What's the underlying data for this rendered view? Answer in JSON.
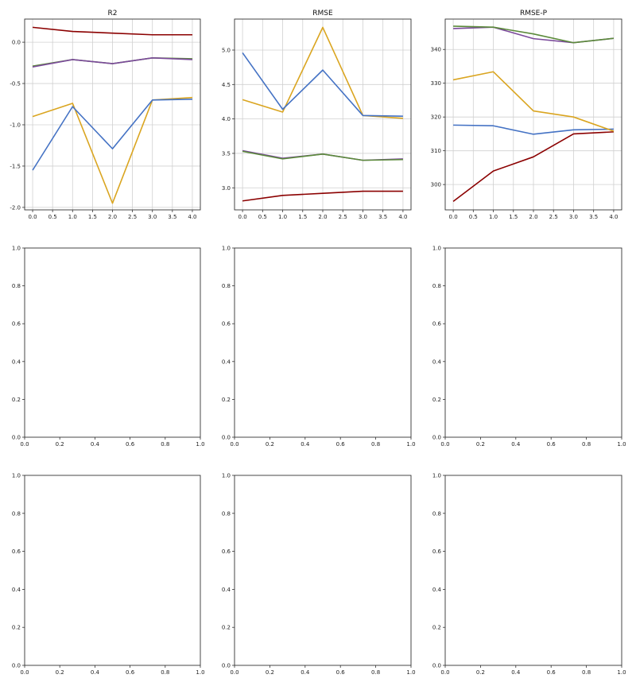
{
  "chart_data": [
    {
      "type": "line",
      "title": "R2",
      "xlabel": "",
      "ylabel": "",
      "grid": true,
      "x": [
        0,
        1,
        2,
        3,
        4
      ],
      "xticks": [
        0.0,
        0.5,
        1.0,
        1.5,
        2.0,
        2.5,
        3.0,
        3.5,
        4.0
      ],
      "xtick_labels": [
        "0.0",
        "0.5",
        "1.0",
        "1.5",
        "2.0",
        "2.5",
        "3.0",
        "3.5",
        "4.0"
      ],
      "xlim": [
        -0.2,
        4.2
      ],
      "ylim": [
        -2.03,
        0.28
      ],
      "yticks": [
        -2.0,
        -1.5,
        -1.0,
        -0.5,
        0.0
      ],
      "ytick_labels": [
        "-2.0",
        "-1.5",
        "-1.0",
        "-0.5",
        "0.0"
      ],
      "series": [
        {
          "color": "#8b0000",
          "values": [
            0.18,
            0.13,
            0.11,
            0.09,
            0.09
          ]
        },
        {
          "color": "#5b8a3a",
          "values": [
            -0.29,
            -0.21,
            -0.26,
            -0.19,
            -0.2
          ]
        },
        {
          "color": "#7b4a9b",
          "values": [
            -0.3,
            -0.21,
            -0.26,
            -0.19,
            -0.21
          ]
        },
        {
          "color": "#daa520",
          "values": [
            -0.9,
            -0.74,
            -1.95,
            -0.7,
            -0.67
          ]
        },
        {
          "color": "#4472c4",
          "values": [
            -1.55,
            -0.78,
            -1.29,
            -0.7,
            -0.69
          ]
        }
      ]
    },
    {
      "type": "line",
      "title": "RMSE",
      "xlabel": "",
      "ylabel": "",
      "grid": true,
      "x": [
        0,
        1,
        2,
        3,
        4
      ],
      "xticks": [
        0.0,
        0.5,
        1.0,
        1.5,
        2.0,
        2.5,
        3.0,
        3.5,
        4.0
      ],
      "xtick_labels": [
        "0.0",
        "0.5",
        "1.0",
        "1.5",
        "2.0",
        "2.5",
        "3.0",
        "3.5",
        "4.0"
      ],
      "xlim": [
        -0.2,
        4.2
      ],
      "ylim": [
        2.68,
        5.45
      ],
      "yticks": [
        3.0,
        3.5,
        4.0,
        4.5,
        5.0
      ],
      "ytick_labels": [
        "3.0",
        "3.5",
        "4.0",
        "4.5",
        "5.0"
      ],
      "series": [
        {
          "color": "#8b0000",
          "values": [
            2.81,
            2.89,
            2.92,
            2.95,
            2.95
          ]
        },
        {
          "color": "#7b4a9b",
          "values": [
            3.54,
            3.43,
            3.49,
            3.4,
            3.42
          ]
        },
        {
          "color": "#5b8a3a",
          "values": [
            3.53,
            3.42,
            3.49,
            3.4,
            3.41
          ]
        },
        {
          "color": "#daa520",
          "values": [
            4.28,
            4.1,
            5.33,
            4.05,
            4.01
          ]
        },
        {
          "color": "#4472c4",
          "values": [
            4.96,
            4.14,
            4.71,
            4.05,
            4.04
          ]
        }
      ]
    },
    {
      "type": "line",
      "title": "RMSE-P",
      "xlabel": "",
      "ylabel": "",
      "grid": true,
      "x": [
        0,
        1,
        2,
        3,
        4
      ],
      "xticks": [
        0.0,
        0.5,
        1.0,
        1.5,
        2.0,
        2.5,
        3.0,
        3.5,
        4.0
      ],
      "xtick_labels": [
        "0.0",
        "0.5",
        "1.0",
        "1.5",
        "2.0",
        "2.5",
        "3.0",
        "3.5",
        "4.0"
      ],
      "xlim": [
        -0.2,
        4.2
      ],
      "ylim": [
        292.5,
        349.0
      ],
      "yticks": [
        300,
        310,
        320,
        330,
        340
      ],
      "ytick_labels": [
        "300",
        "310",
        "320",
        "330",
        "340"
      ],
      "series": [
        {
          "color": "#8b0000",
          "values": [
            295.0,
            304.0,
            308.2,
            315.0,
            315.6
          ]
        },
        {
          "color": "#4472c4",
          "values": [
            317.6,
            317.4,
            314.9,
            316.2,
            316.4
          ]
        },
        {
          "color": "#daa520",
          "values": [
            331.0,
            333.4,
            321.8,
            320.0,
            315.8
          ]
        },
        {
          "color": "#7b4a9b",
          "values": [
            346.2,
            346.6,
            343.2,
            342.0,
            343.3
          ]
        },
        {
          "color": "#5b8a3a",
          "values": [
            346.9,
            346.6,
            344.6,
            342.0,
            343.3
          ]
        }
      ]
    },
    {
      "type": "line",
      "title": "",
      "xlabel": "",
      "ylabel": "",
      "grid": false,
      "xlim": [
        0,
        1
      ],
      "ylim": [
        0,
        1
      ],
      "xticks": [
        0.0,
        0.2,
        0.4,
        0.6,
        0.8,
        1.0
      ],
      "xtick_labels": [
        "0.0",
        "0.2",
        "0.4",
        "0.6",
        "0.8",
        "1.0"
      ],
      "yticks": [
        0.0,
        0.2,
        0.4,
        0.6,
        0.8,
        1.0
      ],
      "ytick_labels": [
        "0.0",
        "0.2",
        "0.4",
        "0.6",
        "0.8",
        "1.0"
      ],
      "series": []
    },
    {
      "type": "line",
      "title": "",
      "xlabel": "",
      "ylabel": "",
      "grid": false,
      "xlim": [
        0,
        1
      ],
      "ylim": [
        0,
        1
      ],
      "xticks": [
        0.0,
        0.2,
        0.4,
        0.6,
        0.8,
        1.0
      ],
      "xtick_labels": [
        "0.0",
        "0.2",
        "0.4",
        "0.6",
        "0.8",
        "1.0"
      ],
      "yticks": [
        0.0,
        0.2,
        0.4,
        0.6,
        0.8,
        1.0
      ],
      "ytick_labels": [
        "0.0",
        "0.2",
        "0.4",
        "0.6",
        "0.8",
        "1.0"
      ],
      "series": []
    },
    {
      "type": "line",
      "title": "",
      "xlabel": "",
      "ylabel": "",
      "grid": false,
      "xlim": [
        0,
        1
      ],
      "ylim": [
        0,
        1
      ],
      "xticks": [
        0.0,
        0.2,
        0.4,
        0.6,
        0.8,
        1.0
      ],
      "xtick_labels": [
        "0.0",
        "0.2",
        "0.4",
        "0.6",
        "0.8",
        "1.0"
      ],
      "yticks": [
        0.0,
        0.2,
        0.4,
        0.6,
        0.8,
        1.0
      ],
      "ytick_labels": [
        "0.0",
        "0.2",
        "0.4",
        "0.6",
        "0.8",
        "1.0"
      ],
      "series": []
    },
    {
      "type": "line",
      "title": "",
      "xlabel": "",
      "ylabel": "",
      "grid": false,
      "xlim": [
        0,
        1
      ],
      "ylim": [
        0,
        1
      ],
      "xticks": [
        0.0,
        0.2,
        0.4,
        0.6,
        0.8,
        1.0
      ],
      "xtick_labels": [
        "0.0",
        "0.2",
        "0.4",
        "0.6",
        "0.8",
        "1.0"
      ],
      "yticks": [
        0.0,
        0.2,
        0.4,
        0.6,
        0.8,
        1.0
      ],
      "ytick_labels": [
        "0.0",
        "0.2",
        "0.4",
        "0.6",
        "0.8",
        "1.0"
      ],
      "series": []
    },
    {
      "type": "line",
      "title": "",
      "xlabel": "",
      "ylabel": "",
      "grid": false,
      "xlim": [
        0,
        1
      ],
      "ylim": [
        0,
        1
      ],
      "xticks": [
        0.0,
        0.2,
        0.4,
        0.6,
        0.8,
        1.0
      ],
      "xtick_labels": [
        "0.0",
        "0.2",
        "0.4",
        "0.6",
        "0.8",
        "1.0"
      ],
      "yticks": [
        0.0,
        0.2,
        0.4,
        0.6,
        0.8,
        1.0
      ],
      "ytick_labels": [
        "0.0",
        "0.2",
        "0.4",
        "0.6",
        "0.8",
        "1.0"
      ],
      "series": []
    },
    {
      "type": "line",
      "title": "",
      "xlabel": "",
      "ylabel": "",
      "grid": false,
      "xlim": [
        0,
        1
      ],
      "ylim": [
        0,
        1
      ],
      "xticks": [
        0.0,
        0.2,
        0.4,
        0.6,
        0.8,
        1.0
      ],
      "xtick_labels": [
        "0.0",
        "0.2",
        "0.4",
        "0.6",
        "0.8",
        "1.0"
      ],
      "yticks": [
        0.0,
        0.2,
        0.4,
        0.6,
        0.8,
        1.0
      ],
      "ytick_labels": [
        "0.0",
        "0.2",
        "0.4",
        "0.6",
        "0.8",
        "1.0"
      ],
      "series": []
    }
  ]
}
